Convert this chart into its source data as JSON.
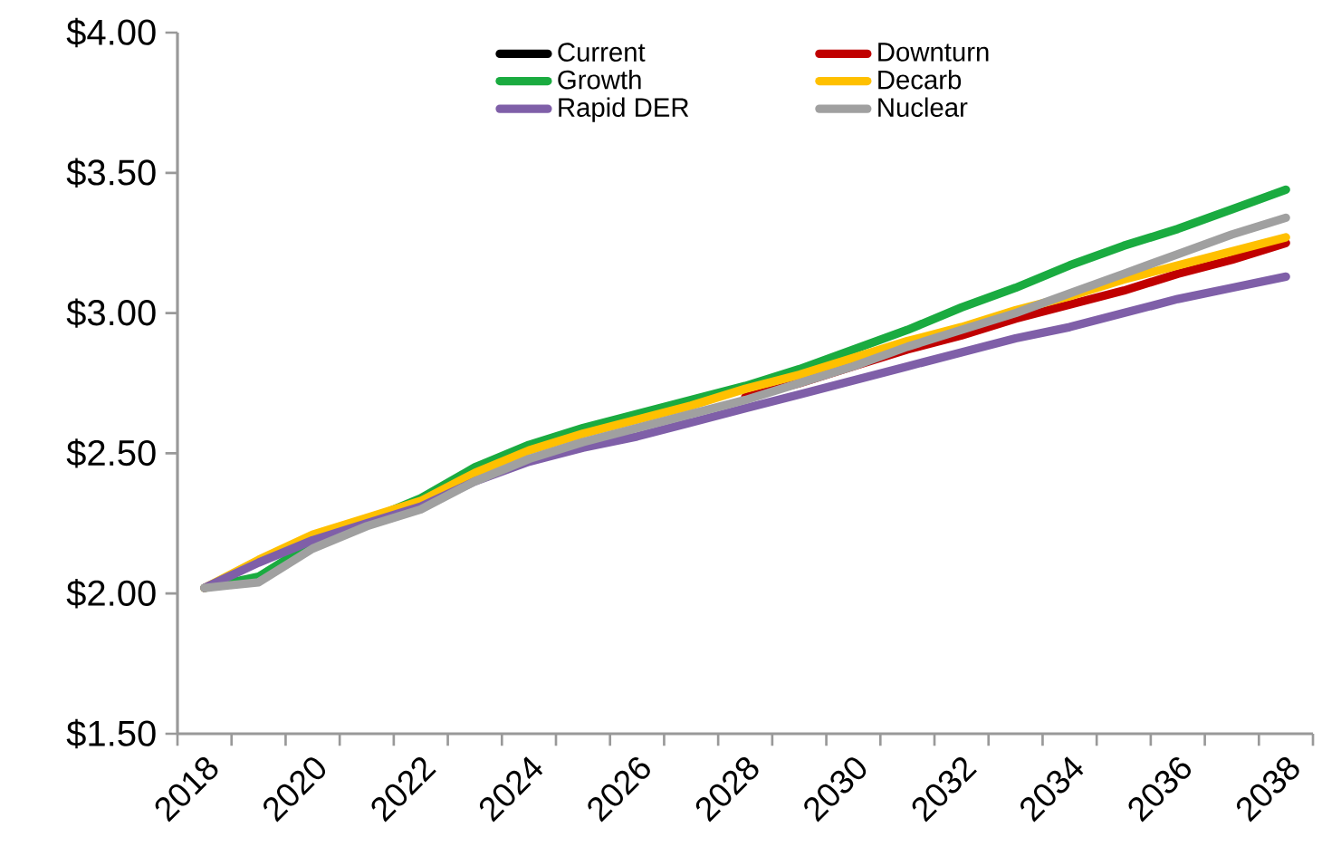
{
  "chart_data": {
    "type": "line",
    "categories": [
      "2018",
      null,
      "2020",
      null,
      "2022",
      null,
      "2024",
      null,
      "2026",
      null,
      "2028",
      null,
      "2030",
      null,
      "2032",
      null,
      "2034",
      null,
      "2036",
      null,
      "2038"
    ],
    "series": [
      {
        "name": "Current",
        "color": "#000000",
        "values": [
          null,
          null,
          null,
          null,
          null,
          null,
          null,
          null,
          null,
          null,
          null,
          null,
          null,
          null,
          null,
          null,
          null,
          null,
          null,
          null,
          null
        ]
      },
      {
        "name": "Downturn",
        "color": "#c00000",
        "values": [
          null,
          null,
          null,
          null,
          null,
          null,
          null,
          null,
          null,
          null,
          2.7,
          2.75,
          2.81,
          2.87,
          2.92,
          2.98,
          3.03,
          3.08,
          3.14,
          3.19,
          3.25
        ]
      },
      {
        "name": "Growth",
        "color": "#1aab40",
        "values": [
          2.02,
          2.06,
          2.18,
          2.26,
          2.34,
          2.45,
          2.53,
          2.59,
          2.64,
          2.69,
          2.74,
          2.8,
          2.87,
          2.94,
          3.02,
          3.09,
          3.17,
          3.24,
          3.3,
          3.37,
          3.44
        ]
      },
      {
        "name": "Decarb",
        "color": "#ffc000",
        "values": [
          2.02,
          2.12,
          2.21,
          2.27,
          2.33,
          2.43,
          2.51,
          2.57,
          2.62,
          2.67,
          2.73,
          2.78,
          2.84,
          2.9,
          2.95,
          3.01,
          3.06,
          3.12,
          3.17,
          3.22,
          3.27
        ]
      },
      {
        "name": "Rapid DER",
        "color": "#7f5fa8",
        "values": [
          2.02,
          2.11,
          2.19,
          2.25,
          2.31,
          2.4,
          2.47,
          2.52,
          2.56,
          2.61,
          2.66,
          2.71,
          2.76,
          2.81,
          2.86,
          2.91,
          2.95,
          3.0,
          3.05,
          3.09,
          3.13
        ]
      },
      {
        "name": "Nuclear",
        "color": "#a0a0a0",
        "values": [
          2.02,
          2.04,
          2.16,
          2.24,
          2.3,
          2.4,
          2.48,
          2.54,
          2.59,
          2.64,
          2.69,
          2.75,
          2.81,
          2.88,
          2.94,
          3.0,
          3.07,
          3.14,
          3.21,
          3.28,
          3.34
        ]
      }
    ],
    "ylim": [
      1.5,
      4.0
    ],
    "yticks": [
      {
        "value": 1.5,
        "label": "$1.50"
      },
      {
        "value": 2.0,
        "label": "$2.00"
      },
      {
        "value": 2.5,
        "label": "$2.50"
      },
      {
        "value": 3.0,
        "label": "$3.00"
      },
      {
        "value": 3.5,
        "label": "$3.50"
      },
      {
        "value": 4.0,
        "label": "$4.00"
      }
    ],
    "grid": false,
    "legend": "top",
    "marker": "none",
    "line_style": "solid"
  }
}
